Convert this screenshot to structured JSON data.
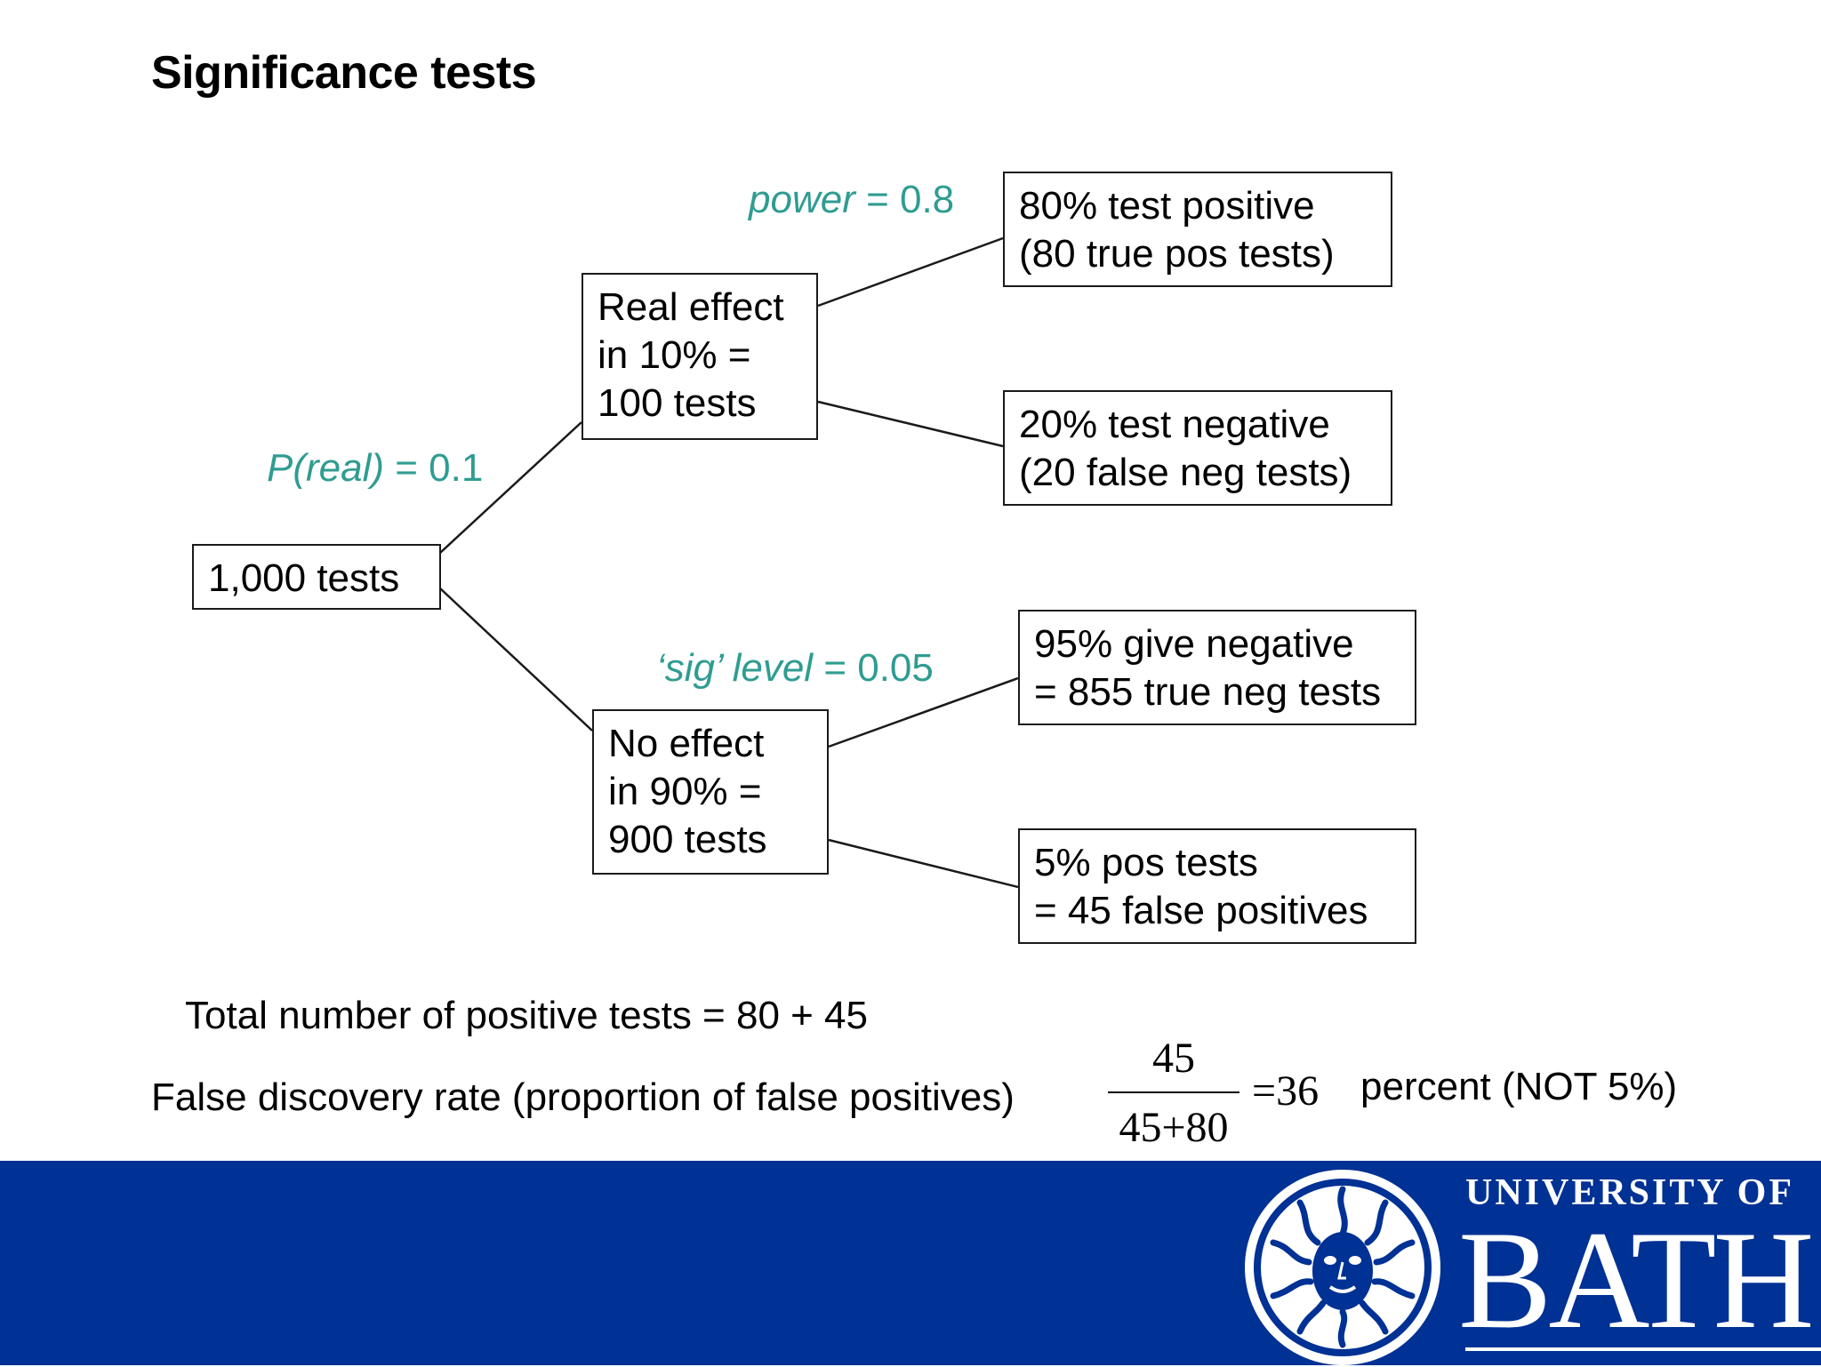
{
  "title": "Significance tests",
  "root": {
    "label": "1,000 tests"
  },
  "real": {
    "lines": [
      "Real effect",
      "in 10% =",
      "100 tests"
    ]
  },
  "no_effect": {
    "lines": [
      "No effect",
      "in 90%  =",
      "900 tests"
    ]
  },
  "outcomes": {
    "true_pos": [
      "80% test positive",
      "(80 true pos tests)"
    ],
    "false_neg": [
      "20% test negative",
      "(20 false neg tests)"
    ],
    "true_neg": [
      "95% give negative",
      "= 855 true neg tests"
    ],
    "false_pos": [
      "5%  pos tests",
      "= 45 false positives"
    ]
  },
  "params": {
    "p_real": {
      "var": "P(real)",
      "rest": " = 0.1"
    },
    "power": {
      "var": "power",
      "rest": " = 0.8"
    },
    "sig": {
      "var": "‘sig’ level",
      "rest": " = 0.05"
    }
  },
  "colors": {
    "param": "#2f9c91",
    "footer": "#003194"
  },
  "summary": {
    "total": "Total number of positive tests = 80 + 45",
    "fdr_label": "False discovery rate (proportion of false positives)",
    "fraction_numerator": "45",
    "fraction_denominator": "45+80",
    "fraction_result": "=36",
    "fraction_suffix": "percent (NOT 5%)"
  },
  "logo": {
    "line1": "UNIVERSITY OF",
    "line2": "BATH",
    "crest_icon": "sun-god-head-crest-icon"
  }
}
